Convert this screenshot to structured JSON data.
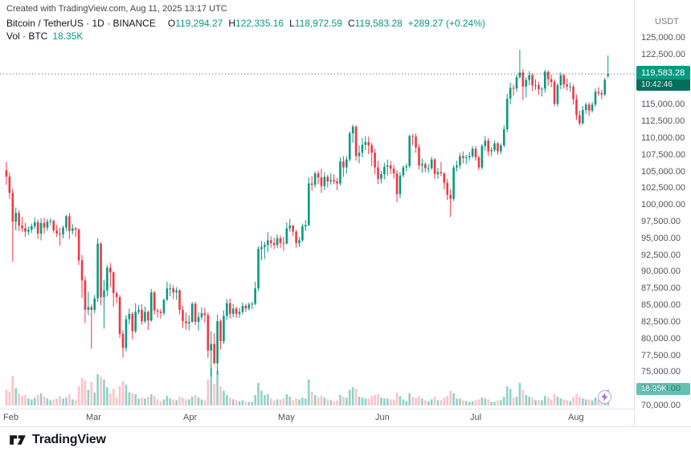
{
  "attribution": "Created with TradingView.com, Aug 11, 2025 13:17 UTC",
  "legend": {
    "title": "Bitcoin / TetherUS · 1D · BINANCE",
    "o_label": "O",
    "o": "119,294.27",
    "h_label": "H",
    "h": "122,335.16",
    "l_label": "L",
    "l": "118,972.59",
    "c_label": "C",
    "c": "119,583.28",
    "change": "+289.27 (+0.24%)",
    "vol_label": "Vol · BTC",
    "vol_value": "18.35K"
  },
  "axis": {
    "currency_label": "USDT"
  },
  "price_label": {
    "value": "119,583.28",
    "countdown": "10:42:46"
  },
  "volume_label": "18.35K",
  "footer": {
    "brand": "TradingView"
  },
  "icons": {
    "quick_trade": "lightning-bolt"
  },
  "chart_data": {
    "type": "candlestick",
    "title": "Bitcoin / TetherUS 1D BINANCE",
    "symbol": "Bitcoin / TetherUS",
    "interval": "1D",
    "exchange": "BINANCE",
    "quote_currency": "USDT",
    "legend_position": "top-left",
    "grid": false,
    "last_price": 119583.28,
    "countdown": "10:42:46",
    "last_volume_btc": "18.35K",
    "y_axis": {
      "min": 70000,
      "max": 125000,
      "tick_step": 2500,
      "ticks": [
        125000,
        122500,
        120000,
        117500,
        115000,
        112500,
        110000,
        107500,
        105000,
        102500,
        100000,
        97500,
        95000,
        92500,
        90000,
        87500,
        85000,
        82500,
        80000,
        77500,
        75000,
        72500,
        70000
      ]
    },
    "x_axis": {
      "months": [
        {
          "label": "Feb",
          "index": 0
        },
        {
          "label": "Mar",
          "index": 28
        },
        {
          "label": "Apr",
          "index": 59
        },
        {
          "label": "May",
          "index": 89
        },
        {
          "label": "Jun",
          "index": 120
        },
        {
          "label": "Jul",
          "index": 150
        },
        {
          "label": "Aug",
          "index": 181
        }
      ]
    },
    "colors": {
      "up": "#089981",
      "down": "#f23645",
      "volume_up": "rgba(8,153,129,0.45)",
      "volume_down": "rgba(242,54,69,0.30)",
      "price_line": "#555a64",
      "badge": "#089981"
    },
    "candles_format": [
      "open_kUSD",
      "high_kUSD",
      "low_kUSD",
      "close_kUSD",
      "volume_kBTC"
    ],
    "candles": [
      [
        105.2,
        106.4,
        103.0,
        104.2,
        18
      ],
      [
        104.2,
        104.8,
        100.9,
        101.8,
        16
      ],
      [
        101.8,
        102.4,
        91.5,
        97.5,
        34
      ],
      [
        97.5,
        99.6,
        96.2,
        98.8,
        20
      ],
      [
        98.8,
        99.2,
        96.1,
        96.9,
        14
      ],
      [
        96.9,
        98.2,
        96.0,
        96.5,
        11
      ],
      [
        96.5,
        97.3,
        95.2,
        96.0,
        12
      ],
      [
        96.0,
        96.8,
        95.5,
        96.3,
        8
      ],
      [
        96.3,
        97.2,
        95.8,
        96.8,
        7
      ],
      [
        96.8,
        98.1,
        96.4,
        97.4,
        9
      ],
      [
        97.4,
        97.8,
        94.9,
        95.7,
        12
      ],
      [
        95.7,
        98.0,
        94.7,
        97.3,
        14
      ],
      [
        97.3,
        98.1,
        95.7,
        96.6,
        10
      ],
      [
        96.6,
        97.9,
        96.1,
        97.5,
        8
      ],
      [
        97.5,
        98.0,
        97.0,
        97.6,
        6
      ],
      [
        97.6,
        97.8,
        95.8,
        96.2,
        7
      ],
      [
        96.2,
        97.0,
        95.2,
        95.7,
        8
      ],
      [
        95.7,
        96.6,
        93.9,
        95.6,
        11
      ],
      [
        95.6,
        96.9,
        95.0,
        96.6,
        8
      ],
      [
        96.6,
        98.5,
        96.1,
        98.3,
        9
      ],
      [
        98.3,
        98.8,
        94.9,
        96.1,
        13
      ],
      [
        96.1,
        97.1,
        95.6,
        96.5,
        7
      ],
      [
        96.5,
        96.7,
        95.2,
        96.3,
        6
      ],
      [
        96.3,
        96.5,
        91.0,
        91.7,
        22
      ],
      [
        91.7,
        92.5,
        86.1,
        88.7,
        32
      ],
      [
        88.7,
        89.3,
        82.3,
        84.3,
        29
      ],
      [
        84.3,
        87.0,
        83.5,
        84.7,
        18
      ],
      [
        84.7,
        85.1,
        78.5,
        84.3,
        27
      ],
      [
        84.3,
        86.5,
        83.8,
        86.0,
        15
      ],
      [
        86.0,
        95.0,
        85.5,
        94.2,
        36
      ],
      [
        94.2,
        94.4,
        85.0,
        86.2,
        33
      ],
      [
        86.2,
        88.8,
        81.5,
        87.2,
        30
      ],
      [
        87.2,
        91.0,
        86.3,
        90.6,
        21
      ],
      [
        90.6,
        91.3,
        87.7,
        89.9,
        14
      ],
      [
        89.9,
        90.1,
        84.7,
        86.8,
        19
      ],
      [
        86.8,
        87.0,
        85.3,
        86.2,
        9
      ],
      [
        86.2,
        86.5,
        80.1,
        80.7,
        22
      ],
      [
        80.7,
        81.2,
        77.2,
        78.6,
        28
      ],
      [
        78.6,
        83.5,
        78.1,
        82.9,
        24
      ],
      [
        82.9,
        84.5,
        82.1,
        83.7,
        15
      ],
      [
        83.7,
        84.0,
        79.9,
        81.1,
        14
      ],
      [
        81.1,
        85.3,
        80.8,
        84.0,
        13
      ],
      [
        84.0,
        85.0,
        83.6,
        84.3,
        8
      ],
      [
        84.3,
        85.1,
        82.1,
        82.6,
        9
      ],
      [
        82.6,
        84.8,
        82.3,
        84.0,
        8
      ],
      [
        84.0,
        84.2,
        81.3,
        82.7,
        10
      ],
      [
        82.7,
        87.4,
        82.5,
        86.9,
        13
      ],
      [
        86.9,
        87.1,
        83.6,
        84.2,
        11
      ],
      [
        84.2,
        84.5,
        83.1,
        84.0,
        7
      ],
      [
        84.0,
        84.4,
        83.0,
        83.8,
        5
      ],
      [
        83.8,
        86.0,
        83.5,
        85.8,
        7
      ],
      [
        85.8,
        88.5,
        85.6,
        87.5,
        11
      ],
      [
        87.5,
        88.2,
        86.3,
        87.5,
        8
      ],
      [
        87.5,
        88.0,
        85.9,
        86.9,
        7
      ],
      [
        86.9,
        87.7,
        85.8,
        87.2,
        6
      ],
      [
        87.2,
        87.4,
        83.6,
        84.3,
        10
      ],
      [
        84.3,
        84.9,
        81.6,
        82.6,
        9
      ],
      [
        82.6,
        83.9,
        81.3,
        82.3,
        7
      ],
      [
        82.3,
        83.5,
        81.2,
        82.5,
        7
      ],
      [
        82.5,
        85.5,
        82.4,
        85.2,
        10
      ],
      [
        85.2,
        85.5,
        82.0,
        82.5,
        12
      ],
      [
        82.5,
        83.9,
        81.2,
        83.2,
        9
      ],
      [
        83.2,
        84.7,
        82.8,
        83.8,
        7
      ],
      [
        83.8,
        84.6,
        82.4,
        83.5,
        6
      ],
      [
        83.5,
        83.9,
        77.1,
        78.2,
        30
      ],
      [
        78.2,
        81.1,
        74.4,
        79.2,
        43
      ],
      [
        79.2,
        80.8,
        76.2,
        76.3,
        25
      ],
      [
        76.3,
        83.6,
        74.6,
        82.6,
        40
      ],
      [
        82.6,
        82.9,
        78.4,
        79.6,
        22
      ],
      [
        79.6,
        84.2,
        79.2,
        83.4,
        17
      ],
      [
        83.4,
        85.9,
        82.8,
        85.3,
        12
      ],
      [
        85.3,
        86.0,
        83.0,
        83.7,
        9
      ],
      [
        83.7,
        85.2,
        83.2,
        84.5,
        7
      ],
      [
        84.5,
        84.8,
        83.1,
        83.7,
        6
      ],
      [
        83.7,
        84.6,
        83.1,
        84.0,
        5
      ],
      [
        84.0,
        85.4,
        83.6,
        84.9,
        6
      ],
      [
        84.9,
        85.2,
        84.0,
        84.5,
        4
      ],
      [
        84.5,
        85.4,
        84.2,
        85.1,
        4
      ],
      [
        85.1,
        85.5,
        84.4,
        85.2,
        4
      ],
      [
        85.2,
        88.5,
        85.0,
        87.5,
        12
      ],
      [
        87.5,
        93.8,
        87.1,
        93.4,
        26
      ],
      [
        93.4,
        94.6,
        91.7,
        93.7,
        17
      ],
      [
        93.7,
        94.5,
        91.9,
        94.0,
        12
      ],
      [
        94.0,
        95.9,
        92.9,
        94.7,
        13
      ],
      [
        94.7,
        95.3,
        93.6,
        94.3,
        8
      ],
      [
        94.3,
        95.1,
        93.4,
        94.0,
        6
      ],
      [
        94.0,
        95.6,
        93.5,
        95.0,
        7
      ],
      [
        95.0,
        95.4,
        93.6,
        94.3,
        7
      ],
      [
        94.3,
        95.2,
        93.1,
        94.2,
        8
      ],
      [
        94.2,
        97.4,
        94.1,
        96.5,
        13
      ],
      [
        96.5,
        97.9,
        96.0,
        96.9,
        10
      ],
      [
        96.9,
        97.0,
        95.3,
        96.0,
        6
      ],
      [
        96.0,
        96.3,
        93.6,
        94.3,
        8
      ],
      [
        94.3,
        95.2,
        93.7,
        94.7,
        7
      ],
      [
        94.7,
        97.2,
        94.5,
        96.8,
        9
      ],
      [
        96.8,
        97.7,
        96.1,
        97.0,
        8
      ],
      [
        97.0,
        104.1,
        96.8,
        103.2,
        30
      ],
      [
        103.2,
        104.3,
        102.1,
        103.0,
        16
      ],
      [
        103.0,
        105.0,
        102.6,
        104.7,
        12
      ],
      [
        104.7,
        105.1,
        103.1,
        104.1,
        9
      ],
      [
        104.1,
        105.4,
        101.8,
        102.8,
        11
      ],
      [
        102.8,
        104.9,
        102.2,
        104.2,
        9
      ],
      [
        104.2,
        104.5,
        102.6,
        103.5,
        7
      ],
      [
        103.5,
        104.7,
        103.0,
        103.7,
        6
      ],
      [
        103.7,
        104.6,
        103.1,
        103.5,
        5
      ],
      [
        103.5,
        104.0,
        102.2,
        103.2,
        6
      ],
      [
        103.2,
        107.1,
        102.9,
        106.5,
        12
      ],
      [
        106.5,
        107.3,
        104.2,
        105.6,
        10
      ],
      [
        105.6,
        107.3,
        104.7,
        106.8,
        9
      ],
      [
        106.8,
        111.0,
        106.5,
        110.7,
        18
      ],
      [
        110.7,
        112.0,
        109.3,
        111.7,
        21
      ],
      [
        111.7,
        111.9,
        106.6,
        107.3,
        19
      ],
      [
        107.3,
        108.9,
        106.2,
        107.8,
        10
      ],
      [
        107.8,
        110.0,
        107.1,
        109.0,
        9
      ],
      [
        109.0,
        110.3,
        108.2,
        109.4,
        8
      ],
      [
        109.4,
        110.2,
        107.6,
        108.9,
        8
      ],
      [
        108.9,
        109.3,
        105.8,
        107.8,
        11
      ],
      [
        107.8,
        108.4,
        104.6,
        105.6,
        12
      ],
      [
        105.6,
        106.6,
        103.1,
        103.9,
        13
      ],
      [
        103.9,
        105.1,
        103.2,
        104.6,
        9
      ],
      [
        104.6,
        106.3,
        103.8,
        105.7,
        8
      ],
      [
        105.7,
        106.8,
        104.4,
        105.9,
        8
      ],
      [
        105.9,
        106.5,
        104.6,
        105.4,
        7
      ],
      [
        105.4,
        106.0,
        103.9,
        104.7,
        7
      ],
      [
        104.7,
        105.2,
        100.4,
        101.6,
        15
      ],
      [
        101.6,
        104.9,
        101.0,
        104.4,
        11
      ],
      [
        104.4,
        105.9,
        104.1,
        105.6,
        7
      ],
      [
        105.6,
        106.2,
        105.0,
        105.8,
        5
      ],
      [
        105.8,
        110.5,
        105.5,
        110.3,
        14
      ],
      [
        110.3,
        110.6,
        108.9,
        110.2,
        10
      ],
      [
        110.2,
        110.7,
        107.8,
        108.6,
        9
      ],
      [
        108.6,
        109.0,
        105.3,
        105.9,
        11
      ],
      [
        105.9,
        106.9,
        104.8,
        106.1,
        8
      ],
      [
        106.1,
        106.4,
        104.9,
        105.5,
        6
      ],
      [
        105.5,
        106.1,
        104.8,
        105.5,
        5
      ],
      [
        105.5,
        107.2,
        105.2,
        106.8,
        7
      ],
      [
        106.8,
        107.0,
        103.9,
        104.6,
        10
      ],
      [
        104.6,
        105.5,
        103.9,
        104.9,
        6
      ],
      [
        104.9,
        106.4,
        104.3,
        104.7,
        6
      ],
      [
        104.7,
        104.9,
        102.3,
        103.3,
        9
      ],
      [
        103.3,
        103.9,
        100.7,
        101.5,
        11
      ],
      [
        101.5,
        102.3,
        98.2,
        100.9,
        17
      ],
      [
        100.9,
        105.9,
        100.6,
        105.6,
        14
      ],
      [
        105.6,
        106.6,
        105.0,
        105.9,
        8
      ],
      [
        105.9,
        107.8,
        105.4,
        107.3,
        8
      ],
      [
        107.3,
        108.0,
        106.2,
        107.0,
        6
      ],
      [
        107.0,
        107.5,
        106.1,
        107.1,
        5
      ],
      [
        107.1,
        107.9,
        106.6,
        107.3,
        4
      ],
      [
        107.3,
        108.8,
        107.0,
        108.4,
        5
      ],
      [
        108.4,
        108.8,
        106.6,
        107.1,
        6
      ],
      [
        107.1,
        107.4,
        105.2,
        105.6,
        7
      ],
      [
        105.6,
        109.1,
        105.3,
        108.8,
        9
      ],
      [
        108.8,
        110.3,
        108.1,
        109.6,
        8
      ],
      [
        109.6,
        110.0,
        107.3,
        108.0,
        7
      ],
      [
        108.0,
        108.6,
        107.3,
        108.2,
        4
      ],
      [
        108.2,
        109.6,
        107.9,
        109.2,
        4
      ],
      [
        109.2,
        109.4,
        107.5,
        108.0,
        6
      ],
      [
        108.0,
        109.2,
        107.6,
        108.9,
        6
      ],
      [
        108.9,
        111.9,
        108.6,
        111.3,
        10
      ],
      [
        111.3,
        116.6,
        110.9,
        115.9,
        22
      ],
      [
        115.9,
        118.3,
        115.1,
        117.5,
        19
      ],
      [
        117.5,
        118.0,
        116.3,
        117.4,
        9
      ],
      [
        117.4,
        119.5,
        116.9,
        119.1,
        10
      ],
      [
        119.1,
        123.2,
        118.9,
        119.8,
        26
      ],
      [
        119.8,
        120.3,
        115.7,
        117.7,
        18
      ],
      [
        117.7,
        119.1,
        116.1,
        118.7,
        12
      ],
      [
        118.7,
        120.0,
        117.9,
        119.4,
        10
      ],
      [
        119.4,
        119.7,
        117.0,
        117.9,
        9
      ],
      [
        117.9,
        118.8,
        117.2,
        117.9,
        6
      ],
      [
        117.9,
        118.4,
        116.5,
        117.3,
        6
      ],
      [
        117.3,
        117.6,
        116.2,
        117.4,
        6
      ],
      [
        117.4,
        120.2,
        116.8,
        119.9,
        11
      ],
      [
        119.9,
        120.1,
        117.8,
        118.8,
        9
      ],
      [
        118.8,
        119.5,
        117.6,
        118.4,
        7
      ],
      [
        118.4,
        118.8,
        114.8,
        115.1,
        13
      ],
      [
        115.1,
        118.2,
        114.7,
        117.9,
        10
      ],
      [
        117.9,
        119.8,
        117.3,
        119.4,
        8
      ],
      [
        119.4,
        119.6,
        117.4,
        118.0,
        7
      ],
      [
        118.0,
        118.9,
        117.1,
        117.7,
        6
      ],
      [
        117.7,
        118.3,
        116.9,
        117.7,
        5
      ],
      [
        117.7,
        118.0,
        115.0,
        115.8,
        10
      ],
      [
        115.8,
        116.5,
        112.7,
        113.4,
        13
      ],
      [
        113.4,
        114.1,
        111.9,
        112.2,
        10
      ],
      [
        112.2,
        114.8,
        112.0,
        114.2,
        8
      ],
      [
        114.2,
        115.3,
        113.6,
        115.0,
        7
      ],
      [
        115.0,
        115.3,
        113.3,
        114.1,
        7
      ],
      [
        114.1,
        115.4,
        113.8,
        115.0,
        6
      ],
      [
        115.0,
        117.4,
        114.7,
        116.9,
        9
      ],
      [
        116.9,
        117.6,
        116.3,
        116.7,
        7
      ],
      [
        116.7,
        117.2,
        115.8,
        116.5,
        6
      ],
      [
        116.5,
        119.0,
        116.3,
        118.7,
        10
      ],
      [
        119.29,
        122.34,
        118.97,
        119.58,
        18.35
      ]
    ]
  }
}
